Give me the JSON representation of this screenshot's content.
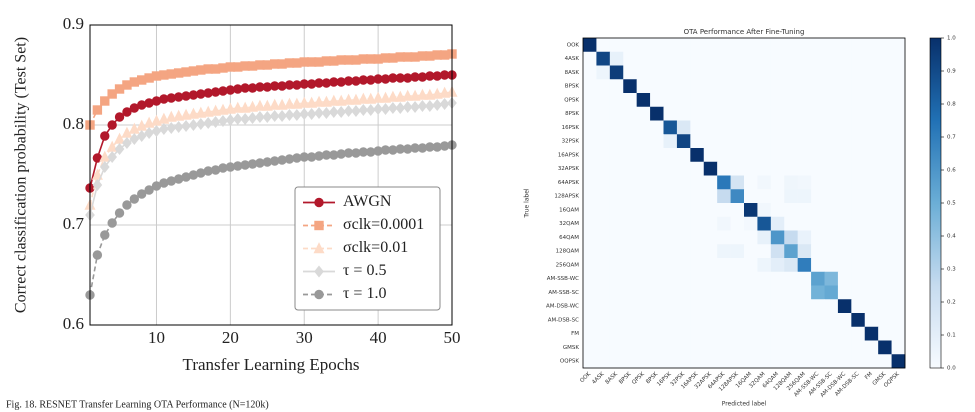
{
  "chart_data": [
    {
      "type": "line",
      "xlabel": "Transfer Learning Epochs",
      "ylabel": "Correct classification probability (Test Set)",
      "x": [
        1,
        2,
        3,
        4,
        5,
        6,
        7,
        8,
        9,
        10,
        11,
        12,
        13,
        14,
        15,
        16,
        17,
        18,
        19,
        20,
        21,
        22,
        23,
        24,
        25,
        26,
        27,
        28,
        29,
        30,
        31,
        32,
        33,
        34,
        35,
        36,
        37,
        38,
        39,
        40,
        41,
        42,
        43,
        44,
        45,
        46,
        47,
        48,
        49,
        50
      ],
      "xlim": [
        1,
        50
      ],
      "xticks": [
        10,
        20,
        30,
        40,
        50
      ],
      "ylim": [
        0.6,
        0.9
      ],
      "yticks": [
        0.6,
        0.7,
        0.8,
        0.9
      ],
      "grid": true,
      "legend": "lower right",
      "series": [
        {
          "name": "AWGN",
          "color": "#b2182b",
          "marker": "circle",
          "linestyle": "solid",
          "values": [
            0.737,
            0.767,
            0.789,
            0.8,
            0.808,
            0.813,
            0.817,
            0.82,
            0.822,
            0.824,
            0.826,
            0.827,
            0.828,
            0.829,
            0.83,
            0.831,
            0.832,
            0.833,
            0.834,
            0.835,
            0.836,
            0.837,
            0.837,
            0.838,
            0.838,
            0.839,
            0.839,
            0.84,
            0.84,
            0.841,
            0.841,
            0.842,
            0.842,
            0.843,
            0.843,
            0.844,
            0.844,
            0.845,
            0.845,
            0.846,
            0.846,
            0.847,
            0.847,
            0.847,
            0.848,
            0.848,
            0.849,
            0.849,
            0.85,
            0.85
          ]
        },
        {
          "name": "σclk=0.0001",
          "color": "#f4a582",
          "marker": "square",
          "linestyle": "dashed",
          "values": [
            0.8,
            0.815,
            0.824,
            0.831,
            0.836,
            0.84,
            0.843,
            0.845,
            0.847,
            0.849,
            0.85,
            0.851,
            0.852,
            0.853,
            0.854,
            0.855,
            0.856,
            0.856,
            0.857,
            0.858,
            0.858,
            0.859,
            0.859,
            0.86,
            0.86,
            0.861,
            0.861,
            0.862,
            0.862,
            0.863,
            0.863,
            0.863,
            0.864,
            0.864,
            0.865,
            0.865,
            0.865,
            0.866,
            0.866,
            0.866,
            0.867,
            0.867,
            0.868,
            0.868,
            0.868,
            0.869,
            0.869,
            0.87,
            0.87,
            0.871
          ]
        },
        {
          "name": "σclk=0.01",
          "color": "#fddbc7",
          "marker": "triangle",
          "linestyle": "dashed",
          "values": [
            0.72,
            0.75,
            0.768,
            0.778,
            0.786,
            0.792,
            0.796,
            0.799,
            0.802,
            0.804,
            0.806,
            0.808,
            0.809,
            0.81,
            0.811,
            0.812,
            0.813,
            0.814,
            0.815,
            0.816,
            0.817,
            0.817,
            0.818,
            0.819,
            0.819,
            0.82,
            0.82,
            0.821,
            0.821,
            0.822,
            0.822,
            0.823,
            0.823,
            0.824,
            0.824,
            0.825,
            0.825,
            0.826,
            0.826,
            0.827,
            0.827,
            0.828,
            0.828,
            0.829,
            0.829,
            0.83,
            0.83,
            0.831,
            0.832,
            0.833
          ]
        },
        {
          "name": "τ = 0.5",
          "color": "#d9d9d9",
          "marker": "diamond",
          "linestyle": "solid",
          "values": [
            0.71,
            0.74,
            0.758,
            0.768,
            0.776,
            0.782,
            0.786,
            0.789,
            0.792,
            0.794,
            0.796,
            0.797,
            0.798,
            0.799,
            0.8,
            0.801,
            0.802,
            0.803,
            0.804,
            0.805,
            0.806,
            0.806,
            0.807,
            0.808,
            0.808,
            0.809,
            0.809,
            0.81,
            0.81,
            0.811,
            0.811,
            0.812,
            0.812,
            0.813,
            0.813,
            0.814,
            0.814,
            0.815,
            0.815,
            0.816,
            0.816,
            0.817,
            0.817,
            0.818,
            0.818,
            0.819,
            0.819,
            0.82,
            0.821,
            0.822
          ]
        },
        {
          "name": "τ = 1.0",
          "color": "#999999",
          "marker": "circle",
          "linestyle": "dashed",
          "values": [
            0.63,
            0.67,
            0.69,
            0.702,
            0.712,
            0.72,
            0.726,
            0.731,
            0.735,
            0.739,
            0.742,
            0.744,
            0.746,
            0.748,
            0.75,
            0.752,
            0.754,
            0.755,
            0.757,
            0.758,
            0.759,
            0.76,
            0.761,
            0.762,
            0.763,
            0.764,
            0.765,
            0.766,
            0.767,
            0.768,
            0.768,
            0.769,
            0.77,
            0.77,
            0.771,
            0.772,
            0.772,
            0.773,
            0.773,
            0.774,
            0.775,
            0.775,
            0.776,
            0.776,
            0.777,
            0.777,
            0.778,
            0.778,
            0.779,
            0.78
          ]
        }
      ]
    },
    {
      "type": "heatmap",
      "title": "OTA Performance After Fine-Tuning",
      "xlabel": "Predicted label",
      "ylabel": "True label",
      "categories": [
        "OOK",
        "4ASK",
        "8ASK",
        "BPSK",
        "QPSK",
        "8PSK",
        "16PSK",
        "32PSK",
        "16APSK",
        "32APSK",
        "64APSK",
        "128APSK",
        "16QAM",
        "32QAM",
        "64QAM",
        "128QAM",
        "256QAM",
        "AM-SSB-WC",
        "AM-SSB-SC",
        "AM-DSB-WC",
        "AM-DSB-SC",
        "FM",
        "GMSK",
        "OQPSK"
      ],
      "clim": [
        0,
        1
      ],
      "colormap": [
        "#f7fbff",
        "#c6dbef",
        "#6baed6",
        "#2171b5",
        "#08306b"
      ],
      "colorbar_ticks": [
        {
          "value": 0,
          "label": "0.0"
        },
        0.1,
        0.2,
        0.3,
        0.4,
        0.5,
        0.6,
        0.7,
        0.8,
        0.9,
        {
          "value": 1,
          "label": "1.0"
        }
      ],
      "values": [
        [
          1,
          0,
          0,
          0,
          0,
          0,
          0,
          0,
          0,
          0,
          0,
          0,
          0,
          0,
          0,
          0,
          0,
          0,
          0,
          0,
          0,
          0,
          0,
          0
        ],
        [
          0,
          0.92,
          0.08,
          0,
          0,
          0,
          0,
          0,
          0,
          0,
          0,
          0,
          0,
          0,
          0,
          0,
          0,
          0,
          0,
          0,
          0,
          0,
          0,
          0
        ],
        [
          0,
          0.05,
          0.95,
          0,
          0,
          0,
          0,
          0,
          0,
          0,
          0,
          0,
          0,
          0,
          0,
          0,
          0,
          0,
          0,
          0,
          0,
          0,
          0,
          0
        ],
        [
          0,
          0,
          0,
          1,
          0,
          0,
          0,
          0,
          0,
          0,
          0,
          0,
          0,
          0,
          0,
          0,
          0,
          0,
          0,
          0,
          0,
          0,
          0,
          0
        ],
        [
          0,
          0,
          0,
          0,
          1,
          0,
          0,
          0,
          0,
          0,
          0,
          0,
          0,
          0,
          0,
          0,
          0,
          0,
          0,
          0,
          0,
          0,
          0,
          0
        ],
        [
          0,
          0,
          0,
          0,
          0,
          1,
          0,
          0,
          0,
          0,
          0,
          0,
          0,
          0,
          0,
          0,
          0,
          0,
          0,
          0,
          0,
          0,
          0,
          0
        ],
        [
          0,
          0,
          0,
          0,
          0,
          0,
          0.85,
          0.15,
          0,
          0,
          0,
          0,
          0,
          0,
          0,
          0,
          0,
          0,
          0,
          0,
          0,
          0,
          0,
          0
        ],
        [
          0,
          0,
          0,
          0,
          0,
          0,
          0.08,
          0.92,
          0,
          0,
          0,
          0,
          0,
          0,
          0,
          0,
          0,
          0,
          0,
          0,
          0,
          0,
          0,
          0
        ],
        [
          0,
          0,
          0,
          0,
          0,
          0,
          0,
          0,
          1,
          0,
          0,
          0,
          0,
          0,
          0,
          0,
          0,
          0,
          0,
          0,
          0,
          0,
          0,
          0
        ],
        [
          0,
          0,
          0,
          0,
          0,
          0,
          0,
          0,
          0,
          1,
          0,
          0,
          0,
          0,
          0,
          0,
          0,
          0,
          0,
          0,
          0,
          0,
          0,
          0
        ],
        [
          0,
          0,
          0,
          0,
          0,
          0,
          0,
          0,
          0,
          0,
          0.72,
          0.18,
          0,
          0.03,
          0,
          0.04,
          0.03,
          0,
          0,
          0,
          0,
          0,
          0,
          0
        ],
        [
          0,
          0,
          0,
          0,
          0,
          0,
          0,
          0,
          0,
          0,
          0.25,
          0.65,
          0,
          0,
          0,
          0.05,
          0.05,
          0,
          0,
          0,
          0,
          0,
          0,
          0
        ],
        [
          0,
          0,
          0,
          0,
          0,
          0,
          0,
          0,
          0,
          0,
          0,
          0,
          0.97,
          0.03,
          0,
          0,
          0,
          0,
          0,
          0,
          0,
          0,
          0,
          0
        ],
        [
          0,
          0,
          0,
          0,
          0,
          0,
          0,
          0,
          0,
          0,
          0.03,
          0,
          0.02,
          0.85,
          0.1,
          0,
          0,
          0,
          0,
          0,
          0,
          0,
          0,
          0
        ],
        [
          0,
          0,
          0,
          0,
          0,
          0,
          0,
          0,
          0,
          0,
          0,
          0,
          0,
          0.08,
          0.6,
          0.25,
          0.07,
          0,
          0,
          0,
          0,
          0,
          0,
          0
        ],
        [
          0,
          0,
          0,
          0,
          0,
          0,
          0,
          0,
          0,
          0,
          0.05,
          0.05,
          0,
          0,
          0.2,
          0.55,
          0.15,
          0,
          0,
          0,
          0,
          0,
          0,
          0
        ],
        [
          0,
          0,
          0,
          0,
          0,
          0,
          0,
          0,
          0,
          0,
          0,
          0,
          0,
          0.05,
          0.1,
          0.15,
          0.7,
          0,
          0,
          0,
          0,
          0,
          0,
          0
        ],
        [
          0,
          0,
          0,
          0,
          0,
          0,
          0,
          0,
          0,
          0,
          0,
          0,
          0,
          0,
          0,
          0,
          0,
          0.55,
          0.45,
          0,
          0,
          0,
          0,
          0
        ],
        [
          0,
          0,
          0,
          0,
          0,
          0,
          0,
          0,
          0,
          0,
          0,
          0,
          0,
          0,
          0,
          0,
          0,
          0.48,
          0.52,
          0,
          0,
          0,
          0,
          0
        ],
        [
          0,
          0,
          0,
          0,
          0,
          0,
          0,
          0,
          0,
          0,
          0,
          0,
          0,
          0,
          0,
          0,
          0,
          0,
          0,
          1,
          0,
          0,
          0,
          0
        ],
        [
          0,
          0,
          0,
          0,
          0,
          0,
          0,
          0,
          0,
          0,
          0,
          0,
          0,
          0,
          0,
          0,
          0,
          0,
          0,
          0,
          1,
          0,
          0,
          0
        ],
        [
          0,
          0,
          0,
          0,
          0,
          0,
          0,
          0,
          0,
          0,
          0,
          0,
          0,
          0,
          0,
          0,
          0,
          0,
          0,
          0,
          0,
          1,
          0,
          0
        ],
        [
          0,
          0,
          0,
          0,
          0,
          0,
          0,
          0,
          0,
          0,
          0,
          0,
          0,
          0,
          0,
          0,
          0,
          0,
          0,
          0,
          0,
          0,
          1,
          0
        ],
        [
          0,
          0,
          0,
          0,
          0,
          0,
          0,
          0,
          0,
          0,
          0,
          0,
          0,
          0,
          0,
          0,
          0,
          0,
          0,
          0,
          0,
          0,
          0,
          1
        ]
      ]
    }
  ],
  "caption": "Fig. 18.   RESNET Transfer Learning OTA Performance (N=120k)"
}
